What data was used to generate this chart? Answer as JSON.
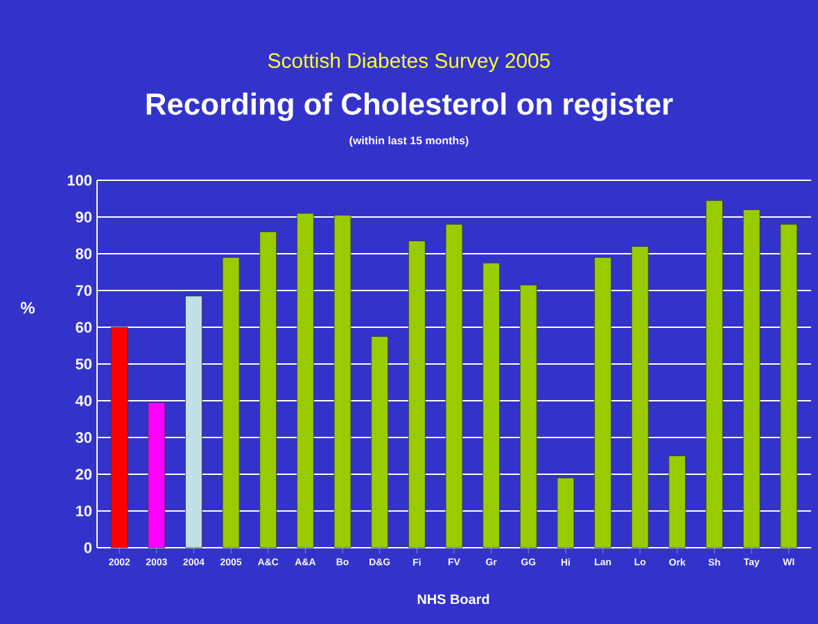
{
  "chart_data": {
    "type": "bar",
    "title": "Recording of Cholesterol on register",
    "subtitle": "(within last 15 months)",
    "annotations": [
      "Scottish Diabetes Survey 2005"
    ],
    "xlabel": "NHS Board",
    "ylabel": "%",
    "categories": [
      "2002",
      "2003",
      "2004",
      "2005",
      "A&C",
      "A&A",
      "Bo",
      "D&G",
      "Fi",
      "FV",
      "Gr",
      "GG",
      "Hi",
      "Lan",
      "Lo",
      "Ork",
      "Sh",
      "Tay",
      "WI"
    ],
    "values": [
      60,
      39.5,
      68.5,
      79,
      86,
      91,
      90.5,
      57.5,
      83.5,
      88,
      77.5,
      71.5,
      19,
      79,
      82,
      25,
      94.5,
      92,
      88
    ],
    "colors": [
      "#ff0000",
      "#ff00ff",
      "#c0e0e4",
      "#99cc00",
      "#99cc00",
      "#99cc00",
      "#99cc00",
      "#99cc00",
      "#99cc00",
      "#99cc00",
      "#99cc00",
      "#99cc00",
      "#99cc00",
      "#99cc00",
      "#99cc00",
      "#99cc00",
      "#99cc00",
      "#99cc00",
      "#99cc00"
    ],
    "ylim": [
      0,
      100
    ],
    "yticks": [
      0,
      10,
      20,
      30,
      40,
      50,
      60,
      70,
      80,
      90,
      100
    ],
    "grid": "y"
  }
}
